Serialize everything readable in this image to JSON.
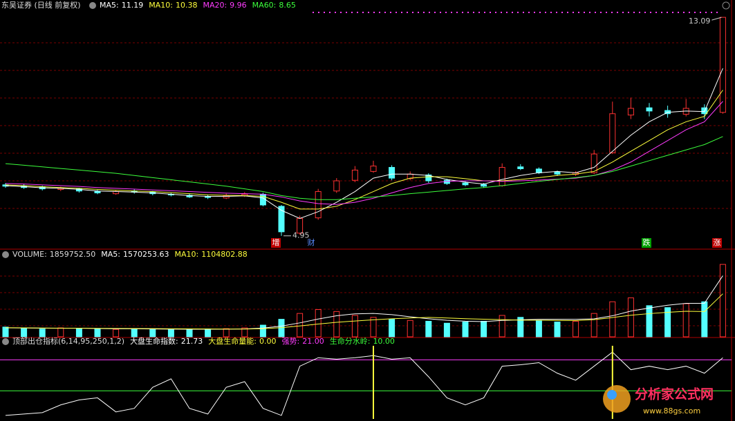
{
  "chart_data": [
    {
      "type": "candlestick",
      "title": "东吴证券 (日线 前复权)",
      "ylim": [
        4.48,
        13.35
      ],
      "up_color": "#ff3232",
      "down_color": "#54ffff",
      "grid": true,
      "grid_color": "#7a0000",
      "open": [
        6.85,
        6.8,
        6.78,
        6.68,
        6.7,
        6.6,
        6.52,
        6.62,
        6.58,
        6.5,
        6.46,
        6.42,
        6.36,
        6.44,
        6.5,
        6.05,
        5.05,
        5.62,
        6.62,
        7.02,
        7.35,
        7.5,
        7.08,
        7.22,
        7.02,
        6.92,
        6.86,
        6.82,
        7.52,
        7.44,
        7.32,
        7.24,
        7.3,
        8.05,
        9.45,
        9.72,
        9.62,
        9.48,
        9.72,
        9.55
      ],
      "high": [
        6.92,
        6.88,
        6.82,
        6.78,
        6.74,
        6.66,
        6.66,
        6.68,
        6.62,
        6.55,
        6.52,
        6.48,
        6.52,
        6.58,
        6.56,
        6.1,
        5.7,
        6.7,
        7.1,
        7.55,
        7.75,
        7.58,
        7.35,
        7.28,
        7.08,
        6.98,
        6.92,
        7.65,
        7.62,
        7.5,
        7.38,
        7.36,
        8.15,
        9.95,
        10.1,
        9.9,
        9.8,
        10.05,
        9.85,
        13.09
      ],
      "low": [
        6.74,
        6.7,
        6.64,
        6.62,
        6.56,
        6.5,
        6.48,
        6.52,
        6.46,
        6.42,
        6.36,
        6.32,
        6.32,
        6.4,
        6.05,
        4.95,
        5.0,
        5.55,
        6.55,
        6.95,
        7.3,
        7.02,
        7.02,
        6.92,
        6.85,
        6.8,
        6.74,
        6.78,
        7.4,
        7.25,
        7.18,
        7.18,
        7.25,
        8.0,
        9.3,
        9.4,
        9.35,
        9.4,
        9.3,
        9.5
      ],
      "close": [
        6.8,
        6.75,
        6.7,
        6.72,
        6.62,
        6.55,
        6.6,
        6.58,
        6.52,
        6.48,
        6.4,
        6.38,
        6.45,
        6.5,
        6.1,
        5.1,
        5.6,
        6.6,
        7.0,
        7.4,
        7.55,
        7.1,
        7.25,
        7.0,
        6.9,
        6.85,
        6.8,
        7.5,
        7.45,
        7.3,
        7.25,
        7.3,
        8.0,
        9.5,
        9.7,
        9.6,
        9.5,
        9.7,
        9.5,
        13.09
      ],
      "series": [
        {
          "name": "MA5:",
          "color": "#ffffff",
          "values": [
            6.82,
            6.78,
            6.74,
            6.72,
            6.68,
            6.62,
            6.6,
            6.58,
            6.55,
            6.5,
            6.45,
            6.42,
            6.42,
            6.44,
            6.36,
            5.9,
            5.6,
            5.85,
            6.2,
            6.6,
            7.1,
            7.25,
            7.25,
            7.2,
            7.05,
            6.95,
            6.88,
            7.05,
            7.2,
            7.3,
            7.35,
            7.3,
            7.5,
            8.1,
            8.7,
            9.2,
            9.55,
            9.6,
            9.58,
            11.19
          ]
        },
        {
          "name": "MA10:",
          "color": "#ffff3c",
          "values": [
            6.85,
            6.82,
            6.78,
            6.75,
            6.72,
            6.68,
            6.65,
            6.62,
            6.6,
            6.56,
            6.52,
            6.48,
            6.46,
            6.45,
            6.42,
            6.2,
            5.95,
            5.95,
            6.05,
            6.3,
            6.6,
            6.9,
            7.1,
            7.15,
            7.15,
            7.08,
            7.0,
            7.0,
            7.05,
            7.12,
            7.2,
            7.25,
            7.35,
            7.7,
            8.1,
            8.5,
            8.9,
            9.2,
            9.4,
            10.38
          ]
        },
        {
          "name": "MA20:",
          "color": "#ff3cff",
          "values": [
            6.9,
            6.88,
            6.85,
            6.82,
            6.79,
            6.75,
            6.72,
            6.69,
            6.66,
            6.63,
            6.6,
            6.57,
            6.54,
            6.52,
            6.5,
            6.4,
            6.25,
            6.15,
            6.12,
            6.2,
            6.35,
            6.55,
            6.75,
            6.9,
            6.98,
            7.0,
            7.0,
            6.98,
            7.0,
            7.03,
            7.06,
            7.1,
            7.2,
            7.4,
            7.7,
            8.1,
            8.5,
            8.9,
            9.2,
            9.96
          ]
        },
        {
          "name": "MA60:",
          "color": "#3cff3c",
          "values": [
            7.64,
            7.58,
            7.52,
            7.46,
            7.4,
            7.34,
            7.28,
            7.2,
            7.12,
            7.04,
            6.96,
            6.88,
            6.8,
            6.7,
            6.6,
            6.45,
            6.35,
            6.3,
            6.3,
            6.35,
            6.4,
            6.45,
            6.52,
            6.58,
            6.64,
            6.7,
            6.75,
            6.82,
            6.9,
            6.98,
            7.05,
            7.12,
            7.2,
            7.35,
            7.55,
            7.75,
            7.95,
            8.15,
            8.35,
            8.65
          ]
        }
      ],
      "max_label": 13.09,
      "min_label": 4.95,
      "signals": [
        "增",
        "财",
        "跌",
        "涨"
      ]
    },
    {
      "type": "volume",
      "title": "VOLUME:",
      "ylim": [
        0,
        1950000
      ],
      "values": [
        250000,
        220000,
        200000,
        230000,
        210000,
        200000,
        190000,
        210000,
        200000,
        190000,
        180000,
        200000,
        210000,
        230000,
        300000,
        450000,
        600000,
        700000,
        650000,
        550000,
        500000,
        450000,
        420000,
        400000,
        350000,
        380000,
        400000,
        550000,
        500000,
        420000,
        380000,
        400000,
        600000,
        900000,
        1000000,
        800000,
        750000,
        850000,
        900000,
        1859752.5
      ],
      "value_label": "1859752.50",
      "series": [
        {
          "name": "MA5:",
          "color": "#ffffff",
          "label": "1570253.63",
          "values": [
            230000,
            225000,
            222000,
            220000,
            222000,
            212000,
            206000,
            206000,
            202000,
            198000,
            194000,
            196000,
            196000,
            202000,
            224000,
            274000,
            358000,
            456000,
            540000,
            590000,
            600000,
            570000,
            514000,
            464000,
            424000,
            400000,
            390000,
            420000,
            436000,
            450000,
            450000,
            450000,
            460000,
            540000,
            660000,
            740000,
            810000,
            860000,
            860000,
            1570253.63
          ]
        },
        {
          "name": "MA10:",
          "color": "#ffff3c",
          "label": "1104802.88",
          "values": [
            235000,
            230000,
            225000,
            222000,
            221000,
            217000,
            214000,
            212000,
            210000,
            207000,
            203000,
            201000,
            199000,
            200000,
            209000,
            235000,
            280000,
            329000,
            373000,
            406000,
            437000,
            464000,
            483000,
            499000,
            482000,
            465000,
            451000,
            442000,
            428000,
            425000,
            420000,
            417000,
            440000,
            495000,
            555000,
            595000,
            630000,
            655000,
            648000,
            1104802.88
          ]
        }
      ]
    },
    {
      "type": "line",
      "title": "顶部出仓指标(6,14,95,250,1,2)",
      "ylim": [
        0,
        26.25
      ],
      "series": [
        {
          "name": "大盘生命指数:",
          "color": "#ffffff",
          "values": [
            1.25,
            1.75,
            2.25,
            5,
            6.75,
            7.5,
            2.5,
            3.75,
            11.25,
            14.25,
            3.75,
            1.75,
            11.25,
            13.25,
            3.75,
            1.25,
            18.75,
            21.75,
            21.25,
            21.75,
            22.5,
            21.25,
            21.75,
            15,
            7.5,
            5,
            7.5,
            18.75,
            19.25,
            20,
            16.25,
            13.75,
            18.75,
            23.75,
            17.5,
            18.75,
            17.5,
            18.75,
            16.25,
            21.73
          ]
        },
        {
          "name": "大盘生命量能:",
          "color": "#ffff3c",
          "kind": "spike",
          "label": "0.00",
          "values": [
            0,
            0,
            0,
            0,
            0,
            0,
            0,
            0,
            0,
            0,
            0,
            0,
            0,
            0,
            0,
            0,
            0,
            0,
            0,
            0,
            26,
            0,
            0,
            0,
            0,
            0,
            0,
            0,
            0,
            0,
            0,
            0,
            0,
            26,
            0,
            0,
            0,
            0,
            0,
            0
          ]
        }
      ],
      "levels": [
        {
          "name": "强势:",
          "value": 21,
          "label": "21.00",
          "color": "#ff3cff"
        },
        {
          "name": "生命分水岭:",
          "value": 10,
          "label": "10.00",
          "color": "#3cff3c"
        }
      ]
    }
  ],
  "watermark": {
    "title": "分析家公式网",
    "url": "www.88gs.com"
  }
}
